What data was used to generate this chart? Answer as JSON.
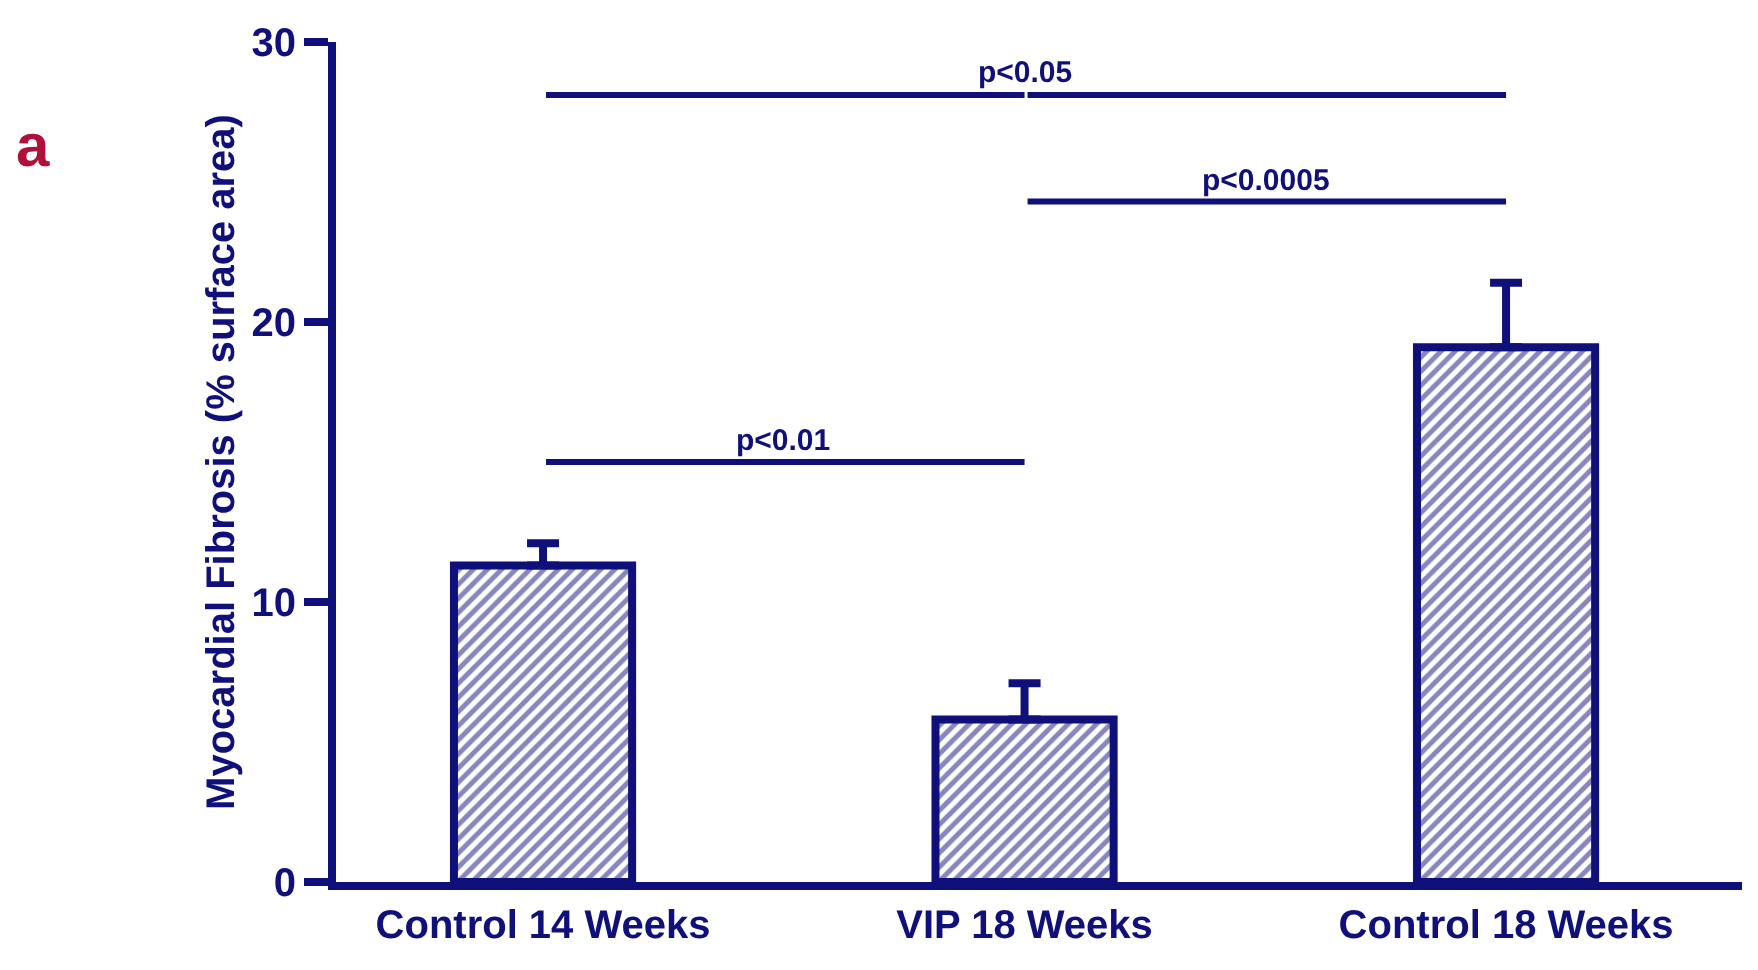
{
  "chart_data": {
    "type": "bar",
    "ylabel": "Myocardial Fibrosis (% surface area)",
    "categories": [
      "Control 14 Weeks",
      "VIP 18 Weeks",
      "Control 18 Weeks"
    ],
    "values": [
      11.3,
      5.8,
      19.1
    ],
    "errors": [
      [
        11.3,
        12.1
      ],
      [
        5.8,
        7.1
      ],
      [
        19.1,
        21.4
      ]
    ],
    "color": "#10107a",
    "ylim": [
      0,
      30
    ],
    "yticks": [
      0,
      10,
      20,
      30
    ],
    "annotations": [
      "a",
      "p<0.01",
      "p<0.05",
      "p<0.0005"
    ]
  }
}
